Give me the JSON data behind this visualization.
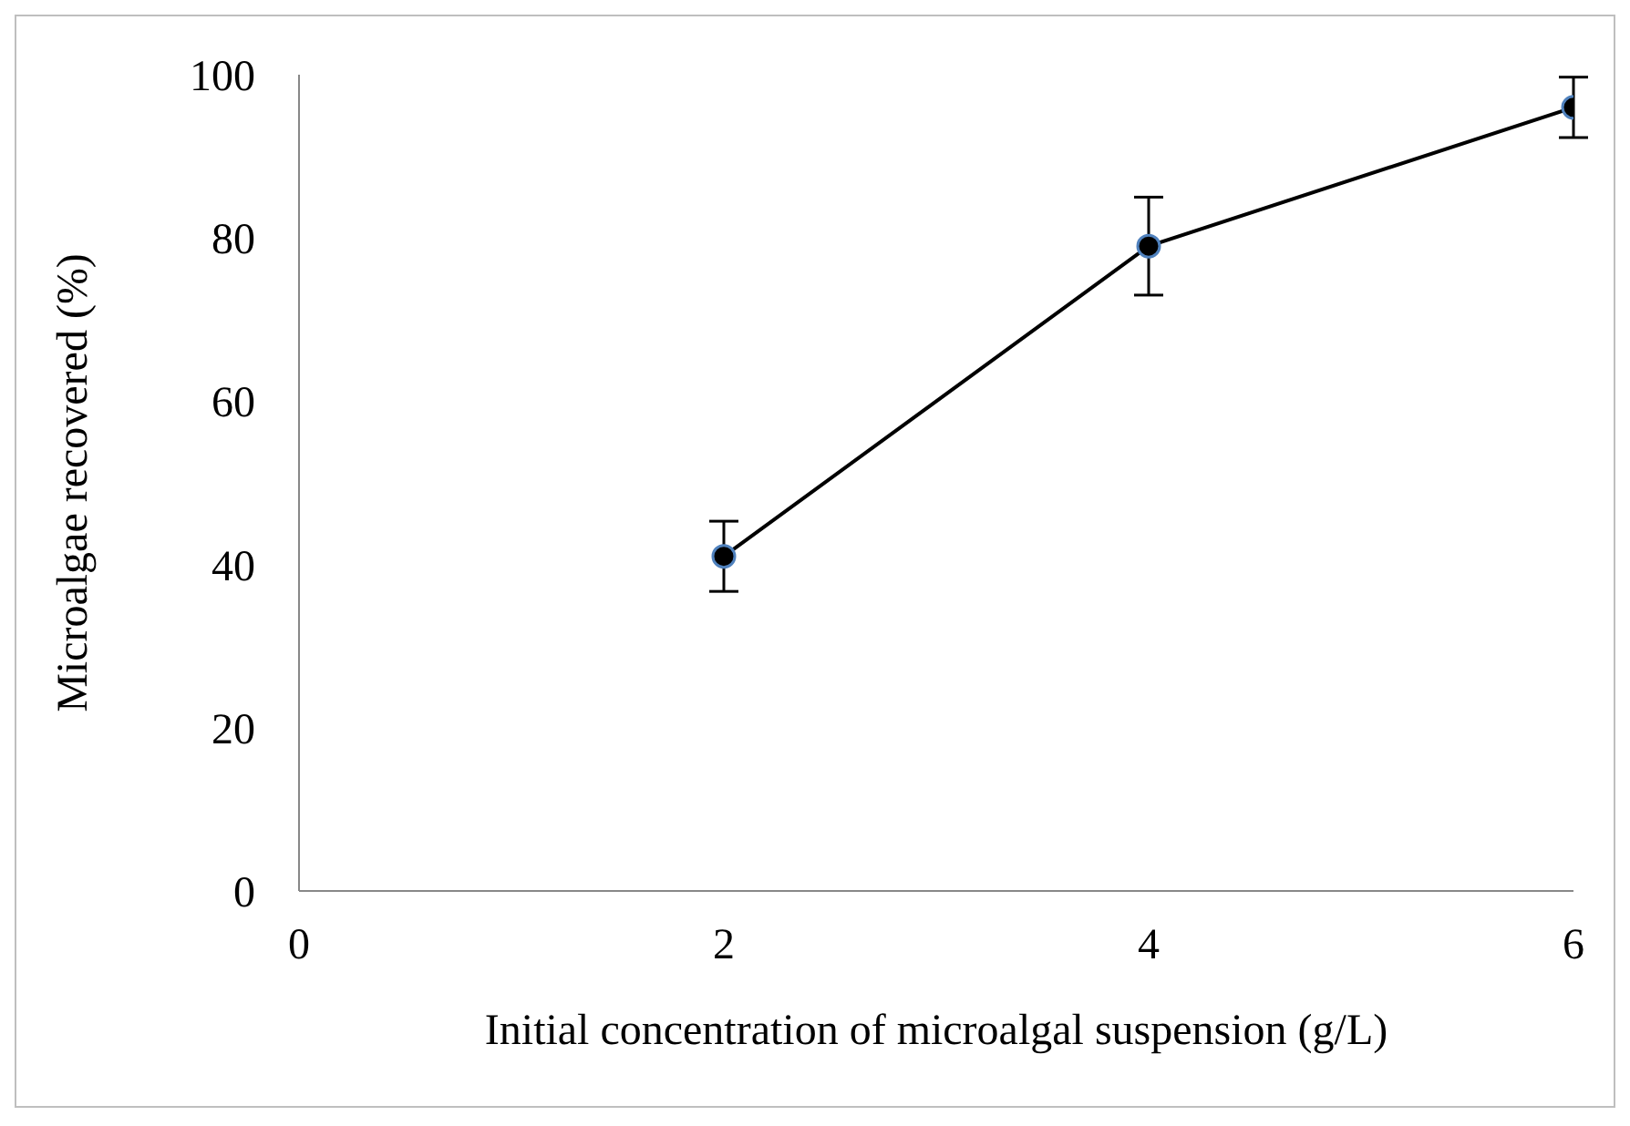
{
  "chart_data": {
    "type": "line",
    "xlabel": "Initial concentration of microalgal suspension (g/L)",
    "ylabel": "Microalgae recovered (%)",
    "x": [
      2,
      4,
      6
    ],
    "series": [
      {
        "color": "#000000",
        "values": [
          41,
          79,
          96
        ],
        "errors": [
          4.3,
          6,
          3.7
        ]
      }
    ],
    "xlim": [
      0,
      6
    ],
    "xticks": [
      0,
      2,
      4,
      6
    ],
    "ylim": [
      0,
      100
    ],
    "yticks": [
      0,
      20,
      40,
      60,
      80,
      100
    ],
    "grid": false,
    "legend": false,
    "marker": "circle",
    "line_style": "solid"
  }
}
